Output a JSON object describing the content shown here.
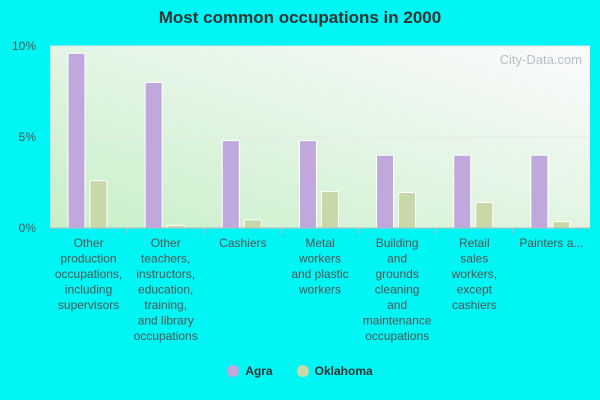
{
  "page": {
    "background": "#00f5f5",
    "plot_background_start": "#c8efc8",
    "plot_background_end": "#fbfbfd"
  },
  "watermark": {
    "text": "City-Data.com"
  },
  "chart_data": {
    "type": "bar",
    "title": "Most common occupations in 2000",
    "categories": [
      "Other production occupations, including supervisors",
      "Other teachers, instructors, education, training, and library occupations",
      "Cashiers",
      "Metal workers and plastic workers",
      "Building and grounds cleaning and maintenance occupations",
      "Retail sales workers, except cashiers",
      "Painters a..."
    ],
    "category_label_lines": [
      [
        "Other",
        "production",
        "occupations,",
        "including",
        "supervisors"
      ],
      [
        "Other",
        "teachers,",
        "instructors,",
        "education,",
        "training,",
        "and library",
        "occupations"
      ],
      [
        "Cashiers"
      ],
      [
        "Metal",
        "workers",
        "and plastic",
        "workers"
      ],
      [
        "Building",
        "and",
        "grounds",
        "cleaning",
        "and",
        "maintenance",
        "occupations"
      ],
      [
        "Retail",
        "sales",
        "workers,",
        "except",
        "cashiers"
      ],
      [
        "Painters a..."
      ]
    ],
    "series": [
      {
        "name": "Agra",
        "color": "#c0a8dc",
        "values": [
          9.6,
          8.0,
          4.8,
          4.8,
          4.0,
          4.0,
          4.0
        ]
      },
      {
        "name": "Oklahoma",
        "color": "#c8d8a8",
        "values": [
          2.6,
          0.15,
          0.45,
          2.0,
          1.95,
          1.4,
          0.35
        ]
      }
    ],
    "ylim": [
      0,
      10
    ],
    "yticks": [
      0,
      5,
      10
    ],
    "ytick_labels": [
      "0%",
      "5%",
      "10%"
    ],
    "xlabel": "",
    "ylabel": "",
    "legend_position": "bottom-center",
    "grid": true
  }
}
